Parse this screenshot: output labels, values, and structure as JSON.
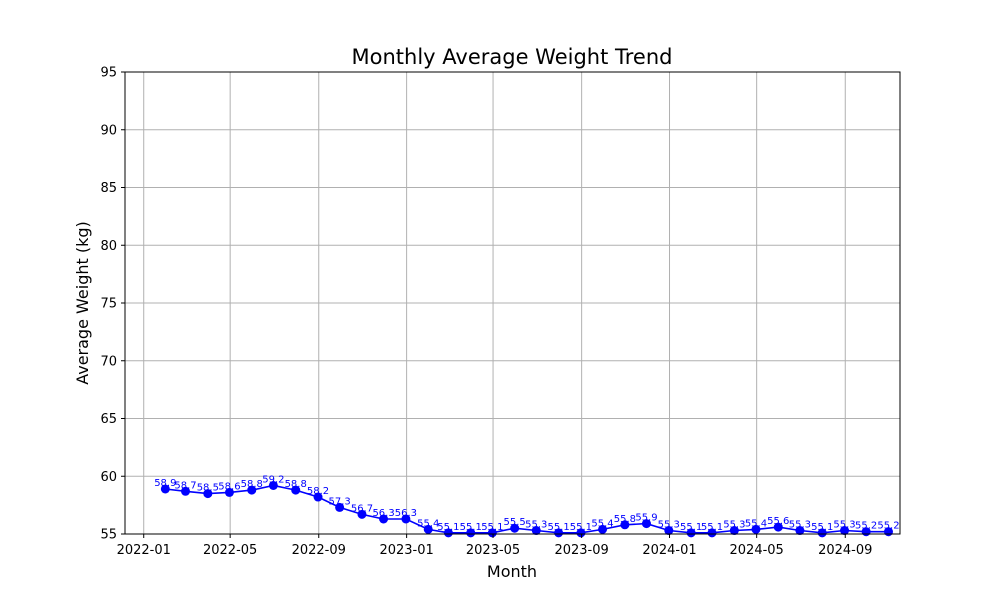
{
  "chart_data": {
    "type": "line",
    "title": "Monthly Average Weight Trend",
    "xlabel": "Month",
    "ylabel": "Average Weight (kg)",
    "ylim": [
      55,
      95
    ],
    "xlim": [
      "2021-12-06",
      "2024-11-16"
    ],
    "grid": true,
    "line_color": "#0000ff",
    "y_ticks": [
      55,
      60,
      65,
      70,
      75,
      80,
      85,
      90,
      95
    ],
    "x_ticks": [
      "2022-01-01",
      "2022-05-01",
      "2022-09-01",
      "2023-01-01",
      "2023-05-01",
      "2023-09-01",
      "2024-01-01",
      "2024-05-01",
      "2024-09-01"
    ],
    "x_tick_labels": [
      "2022-01",
      "2022-05",
      "2022-09",
      "2023-01",
      "2023-05",
      "2023-09",
      "2024-01",
      "2024-05",
      "2024-09"
    ],
    "x": [
      "2022-01-31",
      "2022-02-28",
      "2022-03-31",
      "2022-04-30",
      "2022-05-31",
      "2022-06-30",
      "2022-07-31",
      "2022-08-31",
      "2022-09-30",
      "2022-10-31",
      "2022-11-30",
      "2022-12-31",
      "2023-01-31",
      "2023-02-28",
      "2023-03-31",
      "2023-04-30",
      "2023-05-31",
      "2023-06-30",
      "2023-07-31",
      "2023-08-31",
      "2023-09-30",
      "2023-10-31",
      "2023-11-30",
      "2023-12-31",
      "2024-01-31",
      "2024-02-29",
      "2024-03-31",
      "2024-04-30",
      "2024-05-31",
      "2024-06-30",
      "2024-07-31",
      "2024-08-31",
      "2024-09-30",
      "2024-10-31"
    ],
    "values": [
      58.9,
      58.7,
      58.5,
      58.6,
      58.8,
      59.2,
      58.8,
      58.2,
      57.3,
      56.7,
      56.3,
      56.3,
      55.4,
      55.1,
      55.1,
      55.1,
      55.5,
      55.3,
      55.1,
      55.1,
      55.4,
      55.8,
      55.9,
      55.3,
      55.1,
      55.1,
      55.3,
      55.4,
      55.6,
      55.3,
      55.1,
      55.3,
      55.2,
      55.2
    ],
    "value_labels": [
      "58.9",
      "58.7",
      "58.5",
      "58.6",
      "58.8",
      "59.2",
      "58.8",
      "58.2",
      "57.3",
      "56.7",
      "56.3",
      "56.3",
      "55.4",
      "55.1",
      "55.1",
      "55.1",
      "55.5",
      "55.3",
      "55.1",
      "55.1",
      "55.4",
      "55.8",
      "55.9",
      "55.3",
      "55.1",
      "55.1",
      "55.3",
      "55.4",
      "55.6",
      "55.3",
      "55.1",
      "55.3",
      "55.2",
      "55.2"
    ]
  }
}
